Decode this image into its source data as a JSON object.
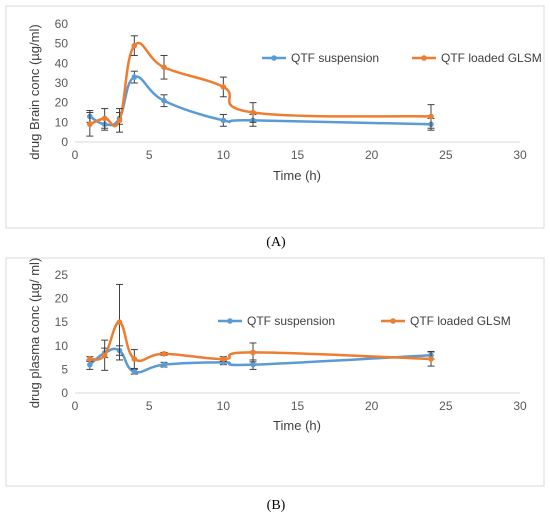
{
  "panels": [
    "(A)",
    "(B)"
  ],
  "chart_data": [
    {
      "type": "line",
      "panel": "(A)",
      "xlabel": "Time (h)",
      "ylabel": "drug Brain conc (µg/ml)",
      "xlim": [
        0,
        30
      ],
      "ylim": [
        0,
        60
      ],
      "xticks": [
        0,
        5,
        10,
        15,
        20,
        25,
        30
      ],
      "yticks": [
        0,
        10,
        20,
        30,
        40,
        50,
        60
      ],
      "grid": false,
      "legend_position": "top-right",
      "series": [
        {
          "name": "QTF suspension",
          "color": "#5B9BD5",
          "x": [
            1,
            2,
            3,
            4,
            6,
            10,
            12,
            24
          ],
          "y": [
            13,
            9,
            12,
            33,
            21,
            11,
            11,
            9
          ],
          "err": [
            3,
            3,
            3,
            3,
            3,
            3,
            3,
            3
          ]
        },
        {
          "name": "QTF loaded GLSM",
          "color": "#ED7D31",
          "x": [
            1,
            2,
            3,
            4,
            6,
            10,
            12,
            24
          ],
          "y": [
            9,
            12,
            11,
            49,
            38,
            28,
            15,
            13
          ],
          "err": [
            6,
            5,
            6,
            5,
            6,
            5,
            5,
            6
          ]
        }
      ]
    },
    {
      "type": "line",
      "panel": "(B)",
      "xlabel": "Time (h)",
      "ylabel": "drug plasma conc (µg/ ml)",
      "xlim": [
        0,
        30
      ],
      "ylim": [
        0,
        25
      ],
      "xticks": [
        0,
        5,
        10,
        15,
        20,
        25,
        30
      ],
      "yticks": [
        0,
        5,
        10,
        15,
        20,
        25
      ],
      "grid": false,
      "legend_position": "top-right",
      "series": [
        {
          "name": "QTF suspension",
          "color": "#5B9BD5",
          "x": [
            1,
            2,
            3,
            4,
            6,
            10,
            12,
            24
          ],
          "y": [
            6,
            8.5,
            9,
            4.5,
            6,
            6.5,
            6,
            8
          ],
          "err": [
            1,
            1,
            1,
            0.5,
            0.5,
            0.5,
            1,
            0.8
          ]
        },
        {
          "name": "QTF loaded GLSM",
          "color": "#ED7D31",
          "x": [
            1,
            2,
            3,
            4,
            6,
            10,
            12,
            24
          ],
          "y": [
            7.2,
            8,
            15,
            7.2,
            8.3,
            7.2,
            8.6,
            7.2
          ],
          "err": [
            0.5,
            3.2,
            8,
            2,
            0.3,
            0.5,
            2,
            1.5
          ]
        }
      ]
    }
  ]
}
